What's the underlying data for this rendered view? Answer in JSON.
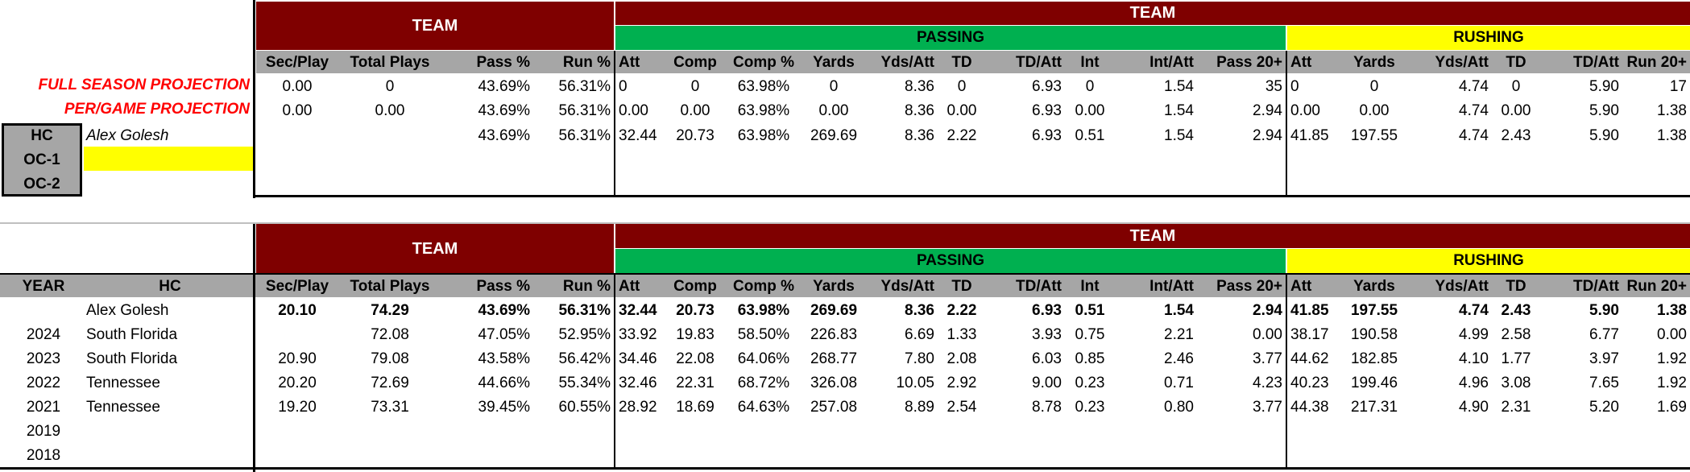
{
  "columns": [
    "Sec/Play",
    "Total Plays",
    "Pass %",
    "Run %",
    "Att",
    "Comp",
    "Comp %",
    "Yards",
    "Yds/Att",
    "TD",
    "TD/Att",
    "Int",
    "Int/Att",
    "Pass 20+",
    "Att",
    "Yards",
    "Yds/Att",
    "TD",
    "TD/Att",
    "Run 20+"
  ],
  "bands": {
    "team": "TEAM",
    "team_top": "TEAM",
    "passing": "PASSING",
    "rushing": "RUSHING"
  },
  "top": {
    "labels": [
      "FULL SEASON PROJECTION",
      "PER/GAME PROJECTION"
    ],
    "coach_roles": [
      "HC",
      "OC-1",
      "OC-2"
    ],
    "hc_name": "Alex Golesh",
    "oc1_name": "",
    "oc2_name": "",
    "rows": [
      [
        "0.00",
        "0",
        "43.69%",
        "56.31%",
        "0",
        "0",
        "63.98%",
        "0",
        "8.36",
        "0",
        "6.93",
        "0",
        "1.54",
        "35",
        "0",
        "0",
        "4.74",
        "0",
        "5.90",
        "17"
      ],
      [
        "0.00",
        "0.00",
        "43.69%",
        "56.31%",
        "0.00",
        "0.00",
        "63.98%",
        "0.00",
        "8.36",
        "0.00",
        "6.93",
        "0.00",
        "1.54",
        "2.94",
        "0.00",
        "0.00",
        "4.74",
        "0.00",
        "5.90",
        "1.38"
      ],
      [
        "",
        "",
        "43.69%",
        "56.31%",
        "32.44",
        "20.73",
        "63.98%",
        "269.69",
        "8.36",
        "2.22",
        "6.93",
        "0.51",
        "1.54",
        "2.94",
        "41.85",
        "197.55",
        "4.74",
        "2.43",
        "5.90",
        "1.38"
      ]
    ]
  },
  "bottom": {
    "year_label": "YEAR",
    "hc_label": "HC",
    "rows": [
      {
        "year": "",
        "hc": "Alex Golesh",
        "bold": true,
        "vals": [
          "20.10",
          "74.29",
          "43.69%",
          "56.31%",
          "32.44",
          "20.73",
          "63.98%",
          "269.69",
          "8.36",
          "2.22",
          "6.93",
          "0.51",
          "1.54",
          "2.94",
          "41.85",
          "197.55",
          "4.74",
          "2.43",
          "5.90",
          "1.38"
        ]
      },
      {
        "year": "2024",
        "hc": "South Florida",
        "bold": false,
        "vals": [
          "",
          "72.08",
          "47.05%",
          "52.95%",
          "33.92",
          "19.83",
          "58.50%",
          "226.83",
          "6.69",
          "1.33",
          "3.93",
          "0.75",
          "2.21",
          "0.00",
          "38.17",
          "190.58",
          "4.99",
          "2.58",
          "6.77",
          "0.00"
        ]
      },
      {
        "year": "2023",
        "hc": "South Florida",
        "bold": false,
        "vals": [
          "20.90",
          "79.08",
          "43.58%",
          "56.42%",
          "34.46",
          "22.08",
          "64.06%",
          "268.77",
          "7.80",
          "2.08",
          "6.03",
          "0.85",
          "2.46",
          "3.77",
          "44.62",
          "182.85",
          "4.10",
          "1.77",
          "3.97",
          "1.92"
        ]
      },
      {
        "year": "2022",
        "hc": "Tennessee",
        "bold": false,
        "vals": [
          "20.20",
          "72.69",
          "44.66%",
          "55.34%",
          "32.46",
          "22.31",
          "68.72%",
          "326.08",
          "10.05",
          "2.92",
          "9.00",
          "0.23",
          "0.71",
          "4.23",
          "40.23",
          "199.46",
          "4.96",
          "3.08",
          "7.65",
          "1.92"
        ]
      },
      {
        "year": "2021",
        "hc": "Tennessee",
        "bold": false,
        "vals": [
          "19.20",
          "73.31",
          "39.45%",
          "60.55%",
          "28.92",
          "18.69",
          "64.63%",
          "257.08",
          "8.89",
          "2.54",
          "8.78",
          "0.23",
          "0.80",
          "3.77",
          "44.38",
          "217.31",
          "4.90",
          "2.31",
          "5.20",
          "1.69"
        ]
      },
      {
        "year": "2019",
        "hc": "",
        "bold": false,
        "vals": [
          "",
          "",
          "",
          "",
          "",
          "",
          "",
          "",
          "",
          "",
          "",
          "",
          "",
          "",
          "",
          "",
          "",
          "",
          "",
          ""
        ]
      },
      {
        "year": "2018",
        "hc": "",
        "bold": false,
        "vals": [
          "",
          "",
          "",
          "",
          "",
          "",
          "",
          "",
          "",
          "",
          "",
          "",
          "",
          "",
          "",
          "",
          "",
          "",
          "",
          ""
        ]
      }
    ]
  },
  "colors": {
    "maroon": "#7f0000",
    "green": "#00b050",
    "yellow": "#ffff00",
    "gray": "#a6a6a6",
    "red_text": "#ff0000"
  }
}
